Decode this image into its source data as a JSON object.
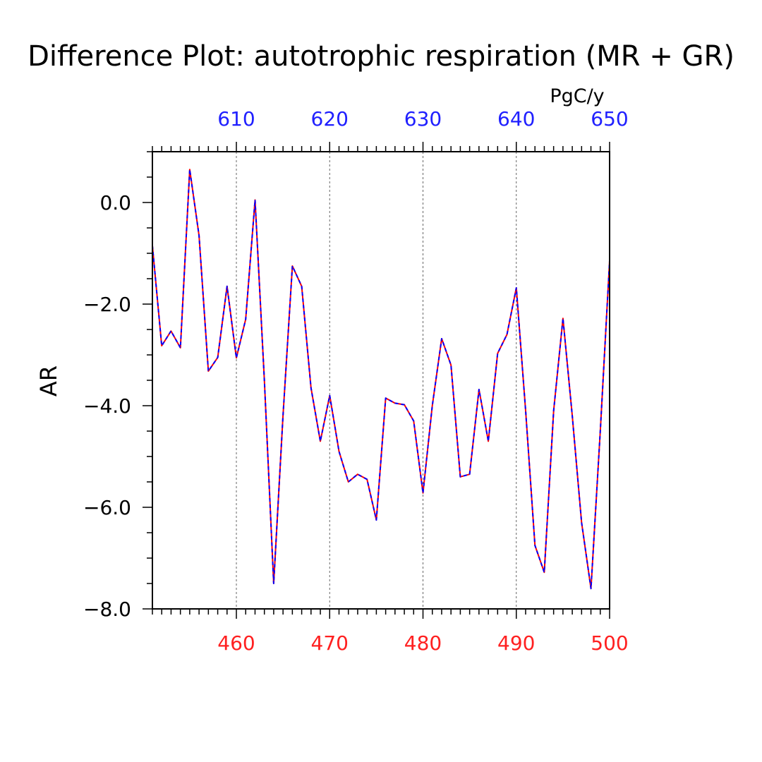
{
  "chart_data": {
    "type": "line",
    "title": "Difference Plot: autotrophic respiration (MR + GR)",
    "units": "PgC/y",
    "ylabel": "AR",
    "xlabel": "",
    "ylim": [
      -8.0,
      1.0
    ],
    "y_ticks": [
      -8.0,
      -6.0,
      -4.0,
      -2.0,
      0.0
    ],
    "y_tick_labels": [
      "−8.0",
      "−6.0",
      "−4.0",
      "−2.0",
      "0.0"
    ],
    "bottom_axis": {
      "range": [
        451,
        500
      ],
      "ticks": [
        460,
        470,
        480,
        490,
        500
      ],
      "tick_labels": [
        "460",
        "470",
        "480",
        "490",
        "500"
      ],
      "color": "#ff2020"
    },
    "top_axis": {
      "range": [
        601,
        650
      ],
      "ticks": [
        610,
        620,
        630,
        640,
        650
      ],
      "tick_labels": [
        "610",
        "620",
        "630",
        "640",
        "650"
      ],
      "color": "#2020ff"
    },
    "grid": "vertical dashed at major ticks",
    "series": [
      {
        "color": "#ff0000",
        "style": "solid"
      },
      {
        "color": "#0000ff",
        "style": "dashed"
      }
    ],
    "x": [
      451,
      452,
      453,
      454,
      455,
      456,
      457,
      458,
      459,
      460,
      461,
      462,
      463,
      464,
      465,
      466,
      467,
      468,
      469,
      470,
      471,
      472,
      473,
      474,
      475,
      476,
      477,
      478,
      479,
      480,
      481,
      482,
      483,
      484,
      485,
      486,
      487,
      488,
      489,
      490,
      491,
      492,
      493,
      494,
      495,
      496,
      497,
      498,
      499,
      500
    ],
    "y": [
      -0.85,
      -2.82,
      -2.53,
      -2.86,
      0.65,
      -0.65,
      -3.32,
      -3.05,
      -1.65,
      -3.06,
      -2.3,
      0.05,
      -3.5,
      -7.5,
      -4.2,
      -1.25,
      -1.65,
      -3.65,
      -4.7,
      -3.8,
      -4.9,
      -5.5,
      -5.35,
      -5.45,
      -6.25,
      -3.85,
      -3.95,
      -3.98,
      -4.3,
      -5.72,
      -4.0,
      -2.68,
      -3.2,
      -5.4,
      -5.35,
      -3.68,
      -4.7,
      -2.97,
      -2.6,
      -1.68,
      -4.1,
      -6.75,
      -7.28,
      -4.1,
      -2.28,
      -4.2,
      -6.3,
      -7.6,
      -4.5,
      -1.15
    ]
  }
}
